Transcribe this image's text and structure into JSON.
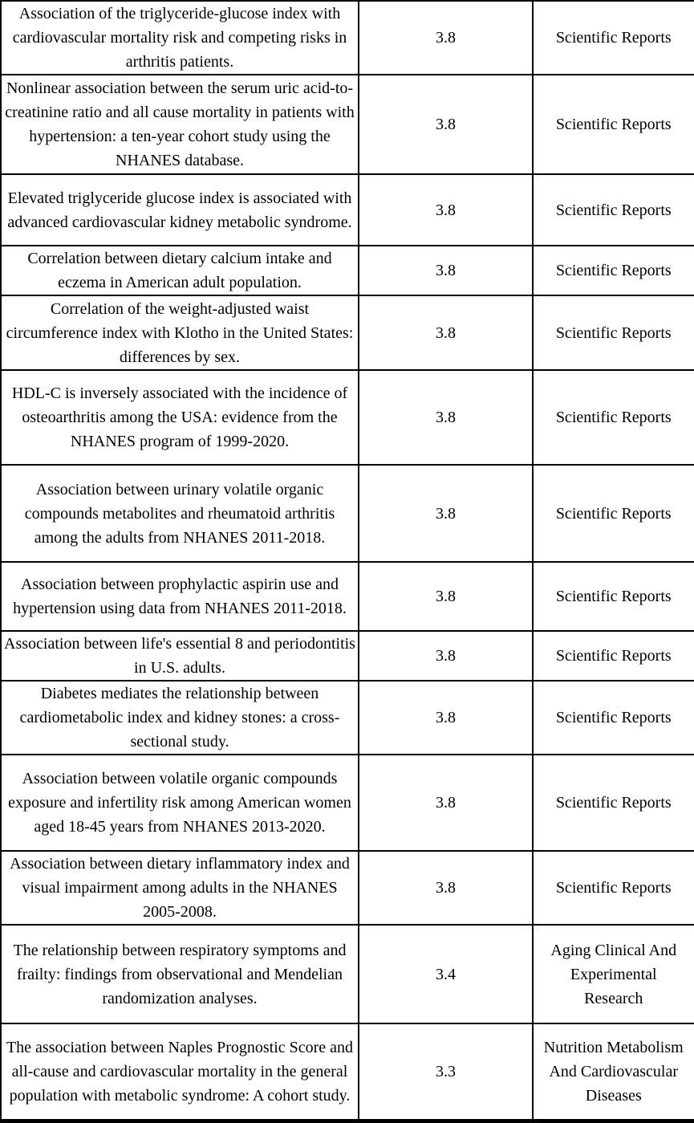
{
  "colors": {
    "border": "#000000",
    "text": "#000000",
    "background": "#ffffff"
  },
  "table": {
    "rows": [
      {
        "title": "Association of the triglyceride-glucose index with cardiovascular mortality risk and competing risks in arthritis patients.",
        "impact_factor": "3.8",
        "journal": "Scientific Reports"
      },
      {
        "title": "Nonlinear association between the serum uric acid-to-creatinine ratio and all cause mortality in patients with hypertension: a ten-year cohort study using the NHANES database.",
        "impact_factor": "3.8",
        "journal": "Scientific Reports"
      },
      {
        "title": "Elevated triglyceride glucose index is associated with advanced cardiovascular kidney metabolic syndrome.",
        "impact_factor": "3.8",
        "journal": "Scientific Reports"
      },
      {
        "title": "Correlation between dietary calcium intake and eczema in American adult population.",
        "impact_factor": "3.8",
        "journal": "Scientific Reports"
      },
      {
        "title": "Correlation of the weight-adjusted waist circumference index with Klotho in the United States: differences by sex.",
        "impact_factor": "3.8",
        "journal": "Scientific Reports"
      },
      {
        "title": "HDL-C is inversely associated with the incidence of osteoarthritis among the USA: evidence from the NHANES program of 1999-2020.",
        "impact_factor": "3.8",
        "journal": "Scientific Reports"
      },
      {
        "title": "Association between urinary volatile organic compounds metabolites and rheumatoid arthritis among the adults from NHANES 2011-2018.",
        "impact_factor": "3.8",
        "journal": "Scientific Reports"
      },
      {
        "title": "Association between prophylactic aspirin use and hypertension using data from NHANES 2011-2018.",
        "impact_factor": "3.8",
        "journal": "Scientific Reports"
      },
      {
        "title": "Association between life's essential 8 and periodontitis in U.S. adults.",
        "impact_factor": "3.8",
        "journal": "Scientific Reports"
      },
      {
        "title": "Diabetes mediates the relationship between cardiometabolic index and kidney stones: a cross-sectional study.",
        "impact_factor": "3.8",
        "journal": "Scientific Reports"
      },
      {
        "title": "Association between volatile organic compounds exposure and infertility risk among American women aged 18-45 years from NHANES 2013-2020.",
        "impact_factor": "3.8",
        "journal": "Scientific Reports"
      },
      {
        "title": "Association between dietary inflammatory index and visual impairment among adults in the NHANES 2005-2008.",
        "impact_factor": "3.8",
        "journal": "Scientific Reports"
      },
      {
        "title": "The relationship between respiratory symptoms and frailty: findings from observational and Mendelian randomization analyses.",
        "impact_factor": "3.4",
        "journal": "Aging Clinical And Experimental Research"
      },
      {
        "title": "The association between Naples Prognostic Score and all-cause and cardiovascular mortality in the general population with metabolic syndrome: A cohort study.",
        "impact_factor": "3.3",
        "journal": "Nutrition Metabolism And Cardiovascular Diseases"
      }
    ]
  }
}
